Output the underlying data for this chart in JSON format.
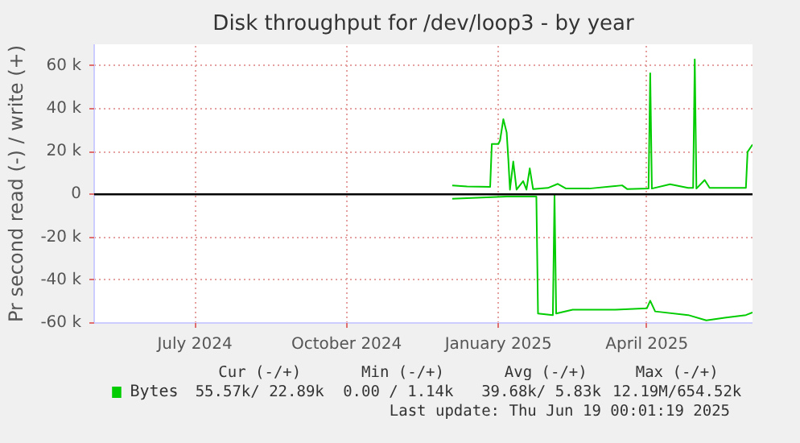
{
  "chart_data": {
    "type": "line",
    "title": "Disk throughput for /dev/loop3 - by year",
    "ylabel": "Pr second read (-) / write (+)",
    "xlim": [
      "2024-05-16",
      "2025-06-19"
    ],
    "xticks": [
      {
        "value": "2024-07-16",
        "label": "July 2024"
      },
      {
        "value": "2024-10-16",
        "label": "October 2024"
      },
      {
        "value": "2025-01-16",
        "label": "January 2025"
      },
      {
        "value": "2025-04-16",
        "label": "April 2025"
      }
    ],
    "ylim": [
      -60000,
      70000
    ],
    "yticks": [
      {
        "value": -60000,
        "label": "-60 k"
      },
      {
        "value": -40000,
        "label": "-40 k"
      },
      {
        "value": -20000,
        "label": "-20 k"
      },
      {
        "value": 0,
        "label": "0"
      },
      {
        "value": 20000,
        "label": "20 k"
      },
      {
        "value": 40000,
        "label": "40 k"
      },
      {
        "value": 60000,
        "label": "60 k"
      }
    ],
    "grid": true,
    "legend": "bottom",
    "marker": "none",
    "line_style": "solid",
    "ref_lines": [
      {
        "axis": "y",
        "value": 0,
        "color": "#000000"
      }
    ],
    "series": [
      {
        "name": "Bytes",
        "color": "#00cc00",
        "x": [
          "2024-12-19",
          "2024-12-28",
          "2025-01-11",
          "2025-01-12",
          "2025-01-16",
          "2025-01-17",
          "2025-01-19",
          "2025-01-21",
          "2025-01-22",
          "2025-01-23",
          "2025-01-25",
          "2025-01-27",
          "2025-01-31",
          "2025-02-02",
          "2025-02-04",
          "2025-02-06",
          "2025-02-15",
          "2025-02-21",
          "2025-02-26",
          "2025-03-12",
          "2025-04-01",
          "2025-04-04",
          "2025-04-17",
          "2025-04-18",
          "2025-04-19",
          "2025-04-30",
          "2025-05-11",
          "2025-05-14",
          "2025-05-15",
          "2025-05-16",
          "2025-05-21",
          "2025-05-24",
          "2025-06-03",
          "2025-06-15",
          "2025-06-16",
          "2025-06-19"
        ],
        "values": [
          4200,
          3700,
          3500,
          23500,
          23500,
          25200,
          35100,
          28900,
          16500,
          2200,
          15300,
          2200,
          6200,
          2200,
          12100,
          2500,
          3000,
          4900,
          2700,
          2700,
          4200,
          2500,
          2700,
          56500,
          2700,
          4700,
          3000,
          3000,
          63000,
          2700,
          6700,
          3000,
          3000,
          3000,
          19800,
          23200
        ]
      },
      {
        "color": "#00cc00",
        "x": [
          "2024-12-19",
          "2025-01-21",
          "2025-02-08",
          "2025-02-09",
          "2025-02-18",
          "2025-02-19",
          "2025-02-20",
          "2025-03-02",
          "2025-03-28",
          "2025-04-16",
          "2025-04-18",
          "2025-04-21",
          "2025-05-11",
          "2025-05-22",
          "2025-06-03",
          "2025-06-15",
          "2025-06-19"
        ],
        "values": [
          -2000,
          -1000,
          -1000,
          -55600,
          -56300,
          -200,
          -55600,
          -53800,
          -53800,
          -53100,
          -49600,
          -54600,
          -56300,
          -58800,
          -57500,
          -56300,
          -55100
        ]
      }
    ],
    "annotations": [
      "Cur (-/+)",
      "Min (-/+)",
      "Avg (-/+)",
      "Max (-/+)",
      "55.57k/ 22.89k",
      "0.00 /  1.14k",
      "39.68k/  5.83k",
      "12.19M/654.52k",
      "Last update: Thu Jun 19 00:01:19 2025"
    ]
  }
}
